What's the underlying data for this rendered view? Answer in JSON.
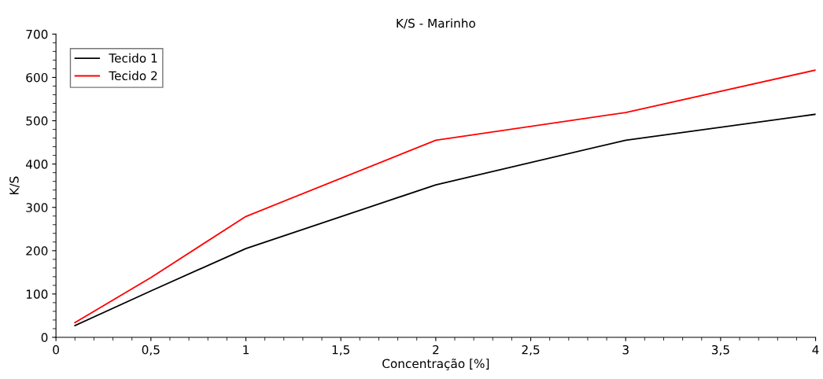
{
  "chart_data": {
    "type": "line",
    "title": "K/S - Marinho",
    "xlabel": "Concentração [%]",
    "ylabel": "K/S",
    "x": [
      0.1,
      0.5,
      1,
      2,
      3,
      4
    ],
    "series": [
      {
        "name": "Tecido 1",
        "color": "#000000",
        "values": [
          27,
          107,
          205,
          352,
          455,
          515
        ]
      },
      {
        "name": "Tecido 2",
        "color": "#ff0000",
        "values": [
          34,
          138,
          279,
          455,
          519,
          617
        ]
      }
    ],
    "xlim": [
      0,
      4
    ],
    "ylim": [
      0,
      700
    ],
    "xticks": [
      0,
      {
        "value": 0.5,
        "label": "0,5"
      },
      1,
      {
        "value": 1.5,
        "label": "1,5"
      },
      2,
      {
        "value": 2.5,
        "label": "2,5"
      },
      3,
      {
        "value": 3.5,
        "label": "3,5"
      },
      4
    ],
    "yticks": [
      0,
      100,
      200,
      300,
      400,
      500,
      600,
      700
    ],
    "grid": false,
    "legend": "top left",
    "marker": "none",
    "line_style": "solid"
  }
}
